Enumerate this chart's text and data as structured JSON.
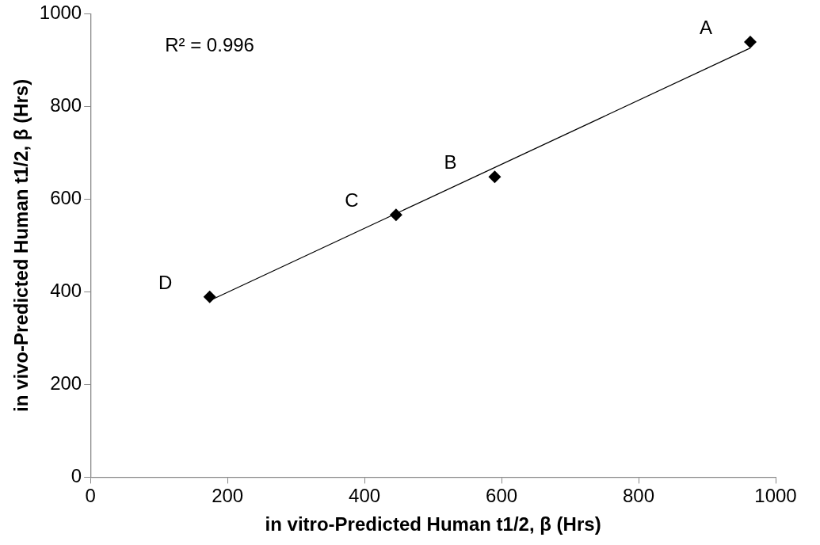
{
  "chart_data": {
    "type": "scatter",
    "xlabel": "in vitro-Predicted Human t1/2, β (Hrs)",
    "ylabel": "in vivo-Predicted Human t1/2, β (Hrs)",
    "x": [
      963,
      590,
      446,
      174
    ],
    "values": [
      939,
      648,
      566,
      389
    ],
    "color": "#000000",
    "marker": "diamond",
    "series": [
      {
        "type": "line",
        "x": [
          174,
          963
        ],
        "values": [
          381,
          926
        ],
        "color": "#000000",
        "marker": "none",
        "line_style": "solid"
      }
    ],
    "xlim": [
      0,
      1000
    ],
    "xticks": [
      0,
      200,
      400,
      600,
      800,
      1000
    ],
    "ylim": [
      0,
      1000
    ],
    "yticks": [
      0,
      200,
      400,
      600,
      800,
      1000
    ],
    "grid": false,
    "legend": false,
    "annotations": [
      "R² = 0.996",
      {
        "text": "A",
        "x": 963,
        "y": 939
      },
      {
        "text": "B",
        "x": 590,
        "y": 648
      },
      {
        "text": "C",
        "x": 446,
        "y": 566
      },
      {
        "text": "D",
        "x": 174,
        "y": 389
      }
    ]
  }
}
